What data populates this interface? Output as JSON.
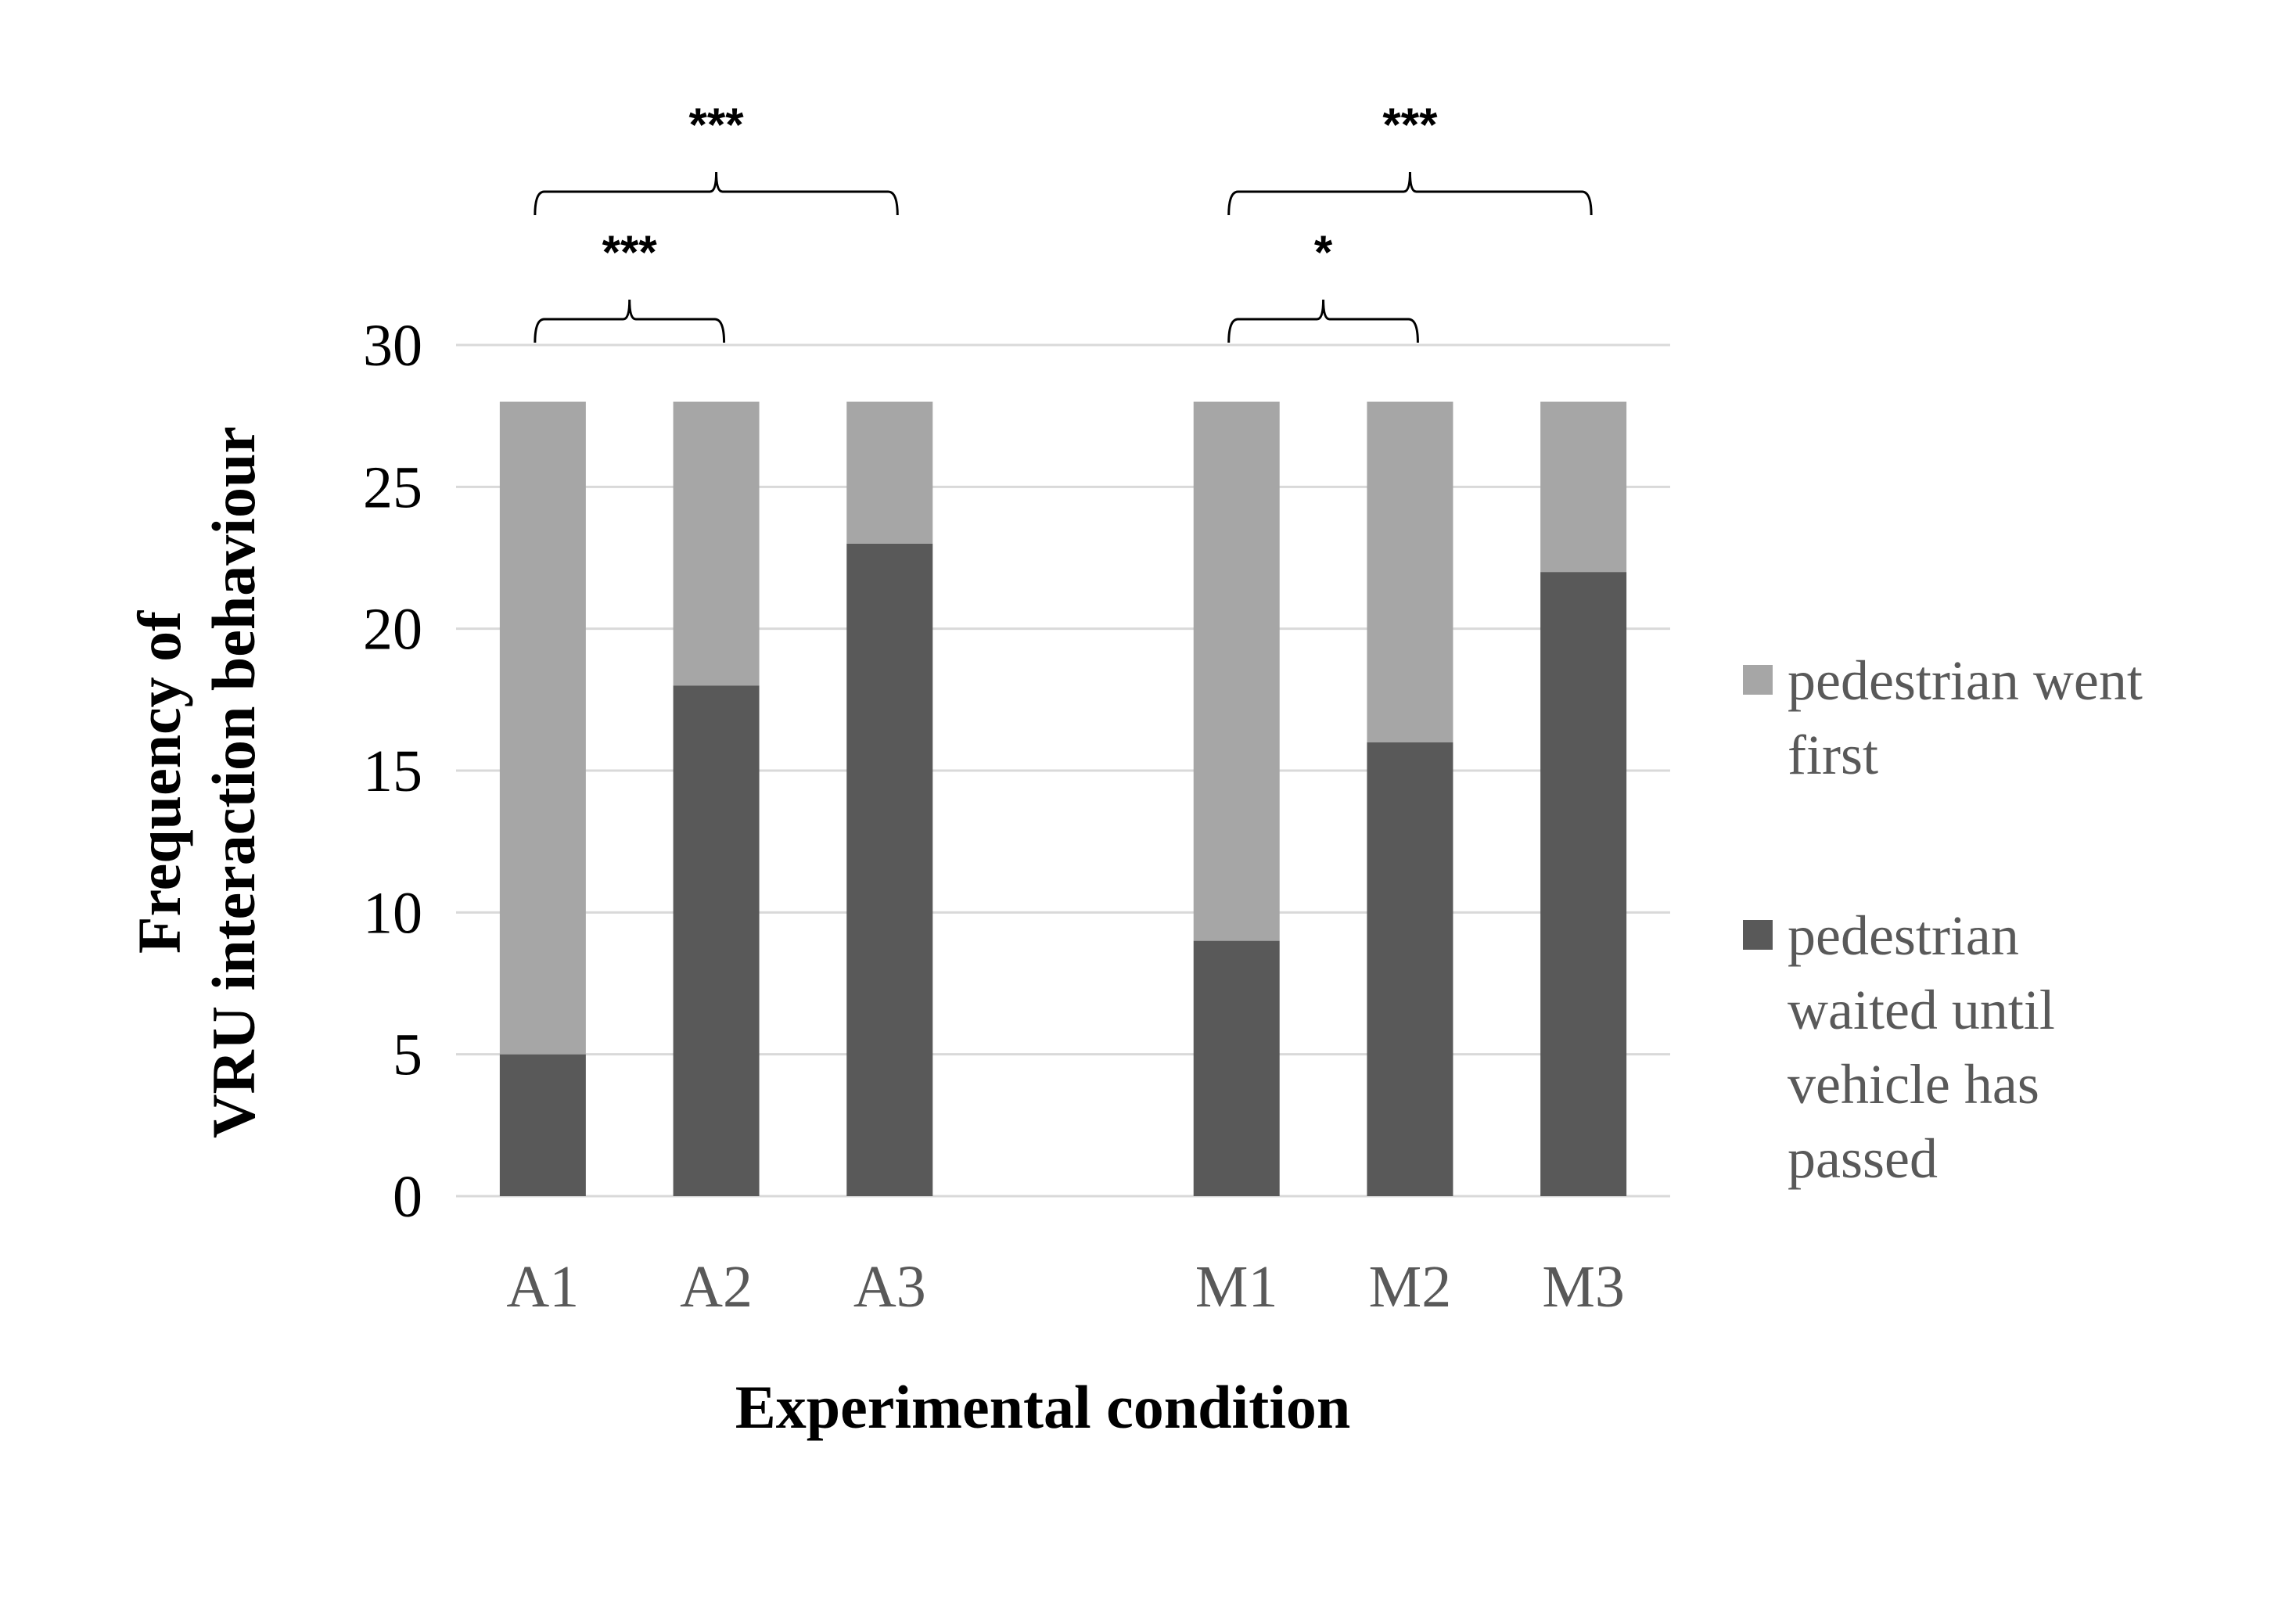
{
  "chart_data": {
    "type": "bar",
    "stacked": true,
    "categories": [
      "A1",
      "A2",
      "A3",
      "M1",
      "M2",
      "M3"
    ],
    "series": [
      {
        "name": "pedestrian waited until vehicle has passed",
        "values": [
          5,
          18,
          23,
          9,
          16,
          22
        ],
        "color": "#595959"
      },
      {
        "name": "pedestrian went first",
        "values": [
          23,
          10,
          5,
          19,
          12,
          6
        ],
        "color": "#a6a6a6"
      }
    ],
    "title": "",
    "xlabel": "Experimental condition",
    "ylabel_lines": [
      "Frequency of",
      "VRU interaction behaviour"
    ],
    "ylim": [
      0,
      30
    ],
    "yticks": [
      "0",
      "5",
      "10",
      "15",
      "20",
      "25",
      "30"
    ],
    "grid": true,
    "legend_position": "right",
    "legend": [
      {
        "lines": [
          "pedestrian went",
          "first"
        ],
        "color": "#a6a6a6"
      },
      {
        "lines": [
          "pedestrian",
          "waited until",
          "vehicle has",
          "passed"
        ],
        "color": "#595959"
      }
    ],
    "annotations": [
      {
        "from": "A1",
        "to": "A2",
        "label": "***",
        "level": 1
      },
      {
        "from": "A1",
        "to": "A3",
        "label": "***",
        "level": 2
      },
      {
        "from": "M1",
        "to": "M2",
        "label": "*",
        "level": 1
      },
      {
        "from": "M1",
        "to": "M3",
        "label": "***",
        "level": 2
      }
    ]
  }
}
